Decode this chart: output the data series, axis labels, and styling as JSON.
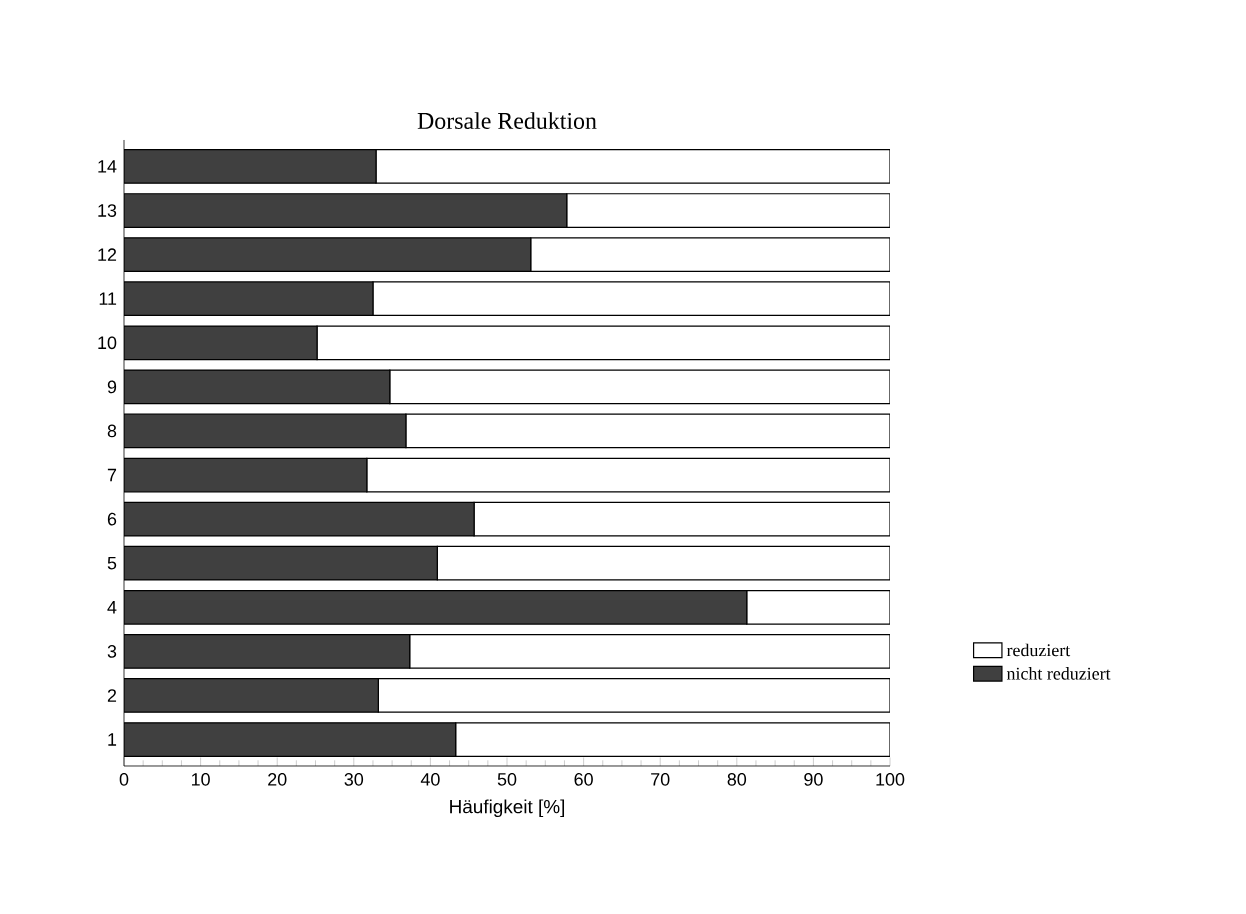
{
  "chart_data": {
    "type": "bar",
    "title": "Dorsale Reduktion",
    "xlabel": "Häufigkeit [%]",
    "orientation": "horizontal",
    "stacked": true,
    "legend": "right",
    "categories": [
      "14",
      "13",
      "12",
      "11",
      "10",
      "9",
      "8",
      "7",
      "6",
      "5",
      "4",
      "3",
      "2",
      "1"
    ],
    "series": [
      {
        "name": "nicht reduziert",
        "color": "#404040",
        "values": [
          32.9,
          57.8,
          53.1,
          32.5,
          25.2,
          34.7,
          36.8,
          31.7,
          45.7,
          40.9,
          81.3,
          37.3,
          33.2,
          43.3
        ]
      },
      {
        "name": "reduziert",
        "color": "#ffffff",
        "values": [
          67.1,
          42.2,
          46.9,
          67.5,
          74.8,
          65.3,
          63.2,
          68.3,
          54.3,
          59.1,
          18.7,
          62.7,
          66.8,
          56.7
        ]
      }
    ],
    "xlim": [
      0,
      100
    ],
    "xticks": [
      0,
      10,
      20,
      30,
      40,
      50,
      60,
      70,
      80,
      90,
      100
    ]
  }
}
